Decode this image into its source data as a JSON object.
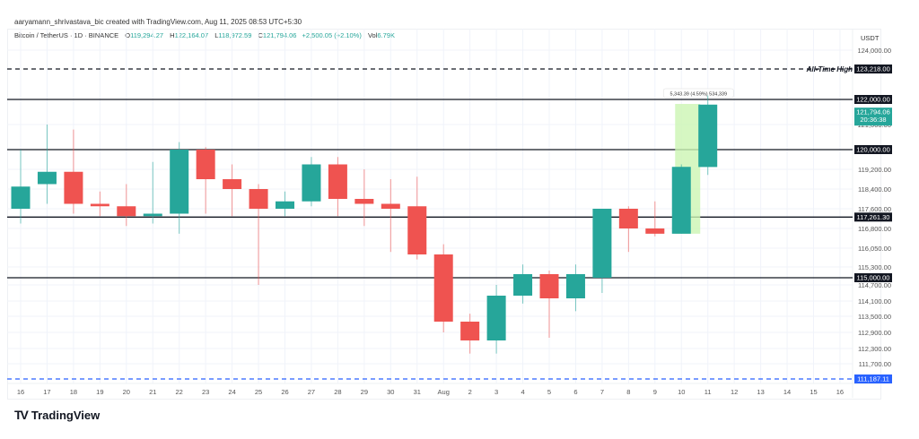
{
  "header": {
    "credit": "aaryamann_shrivastava_bic created with TradingView.com, Aug 11, 2025 08:53 UTC+5:30",
    "symbol": "Bitcoin / TetherUS · 1D · BINANCE",
    "open_label": "O",
    "open": "119,294.27",
    "high_label": "H",
    "high": "122,164.07",
    "low_label": "L",
    "low": "118,972.59",
    "close_label": "C",
    "close": "121,794.06",
    "change": "+2,500.05 (+2.10%)",
    "vol_label": "Vol",
    "vol": "6.79K"
  },
  "price_axis": {
    "currency": "USDT",
    "ticks": [
      "124,000.00",
      "121,000.00",
      "119,200.00",
      "118,400.00",
      "117,600.00",
      "116,800.00",
      "116,050.00",
      "115,300.00",
      "114,700.00",
      "114,100.00",
      "113,500.00",
      "112,900.00",
      "112,300.00",
      "111,700.00"
    ]
  },
  "levels": {
    "ath": {
      "label": "All-Time High",
      "value": "123,218.00"
    },
    "l122": {
      "value": "122,000.00"
    },
    "l120": {
      "value": "120,000.00"
    },
    "l117": {
      "value": "117,261.30"
    },
    "l115": {
      "value": "115,000.00"
    },
    "low": {
      "value": "111,187.11"
    },
    "current": {
      "value": "121,794.06",
      "countdown": "20:36:38"
    }
  },
  "measure": {
    "label": "5,343.39 (4.59%) 534,339"
  },
  "time_axis": [
    "16",
    "17",
    "18",
    "19",
    "20",
    "21",
    "22",
    "23",
    "24",
    "25",
    "26",
    "27",
    "28",
    "29",
    "30",
    "31",
    "Aug",
    "2",
    "3",
    "4",
    "5",
    "6",
    "7",
    "8",
    "9",
    "10",
    "11",
    "12",
    "13",
    "14",
    "15",
    "16"
  ],
  "branding": {
    "mark": "TV",
    "name": "TradingView"
  },
  "colors": {
    "up": "#26a69a",
    "down": "#ef5350",
    "level": "#131722",
    "low_level": "#2962ff",
    "highlight": "#ccf5b3"
  },
  "chart_data": {
    "type": "candlestick",
    "title": "Bitcoin / TetherUS · 1D · BINANCE",
    "xlabel": "",
    "ylabel": "USDT",
    "ylim": [
      111000,
      124500
    ],
    "categories": [
      "Jul 16",
      "Jul 17",
      "Jul 18",
      "Jul 19",
      "Jul 20",
      "Jul 21",
      "Jul 22",
      "Jul 23",
      "Jul 24",
      "Jul 25",
      "Jul 26",
      "Jul 27",
      "Jul 28",
      "Jul 29",
      "Jul 30",
      "Jul 31",
      "Aug 1",
      "Aug 2",
      "Aug 3",
      "Aug 4",
      "Aug 5",
      "Aug 6",
      "Aug 7",
      "Aug 8",
      "Aug 9",
      "Aug 10",
      "Aug 11"
    ],
    "candles": [
      {
        "date": "Jul 16",
        "open": 117600,
        "high": 120000,
        "low": 117000,
        "close": 118500
      },
      {
        "date": "Jul 17",
        "open": 118600,
        "high": 121000,
        "low": 117800,
        "close": 119100
      },
      {
        "date": "Jul 18",
        "open": 119100,
        "high": 120800,
        "low": 117400,
        "close": 117800
      },
      {
        "date": "Jul 19",
        "open": 117800,
        "high": 118300,
        "low": 117300,
        "close": 117700
      },
      {
        "date": "Jul 20",
        "open": 117700,
        "high": 118600,
        "low": 116900,
        "close": 117300
      },
      {
        "date": "Jul 21",
        "open": 117300,
        "high": 119500,
        "low": 117000,
        "close": 117400
      },
      {
        "date": "Jul 22",
        "open": 117400,
        "high": 120300,
        "low": 116600,
        "close": 120000
      },
      {
        "date": "Jul 23",
        "open": 120000,
        "high": 120100,
        "low": 117400,
        "close": 118800
      },
      {
        "date": "Jul 24",
        "open": 118800,
        "high": 119400,
        "low": 117300,
        "close": 118400
      },
      {
        "date": "Jul 25",
        "open": 118400,
        "high": 118600,
        "low": 114700,
        "close": 117600
      },
      {
        "date": "Jul 26",
        "open": 117600,
        "high": 118300,
        "low": 117300,
        "close": 117900
      },
      {
        "date": "Jul 27",
        "open": 117900,
        "high": 119700,
        "low": 117700,
        "close": 119400
      },
      {
        "date": "Jul 28",
        "open": 119400,
        "high": 119700,
        "low": 117300,
        "close": 118000
      },
      {
        "date": "Jul 29",
        "open": 118000,
        "high": 119200,
        "low": 116900,
        "close": 117800
      },
      {
        "date": "Jul 30",
        "open": 117800,
        "high": 118800,
        "low": 115900,
        "close": 117600
      },
      {
        "date": "Jul 31",
        "open": 117700,
        "high": 118900,
        "low": 115600,
        "close": 115800
      },
      {
        "date": "Aug 1",
        "open": 115800,
        "high": 116200,
        "low": 112900,
        "close": 113300
      },
      {
        "date": "Aug 2",
        "open": 113300,
        "high": 113600,
        "low": 112100,
        "close": 112600
      },
      {
        "date": "Aug 3",
        "open": 112600,
        "high": 114700,
        "low": 112100,
        "close": 114300
      },
      {
        "date": "Aug 4",
        "open": 114300,
        "high": 115400,
        "low": 114000,
        "close": 115100
      },
      {
        "date": "Aug 5",
        "open": 115100,
        "high": 115200,
        "low": 112700,
        "close": 114200
      },
      {
        "date": "Aug 6",
        "open": 114200,
        "high": 115400,
        "low": 113700,
        "close": 115100
      },
      {
        "date": "Aug 7",
        "open": 115000,
        "high": 117600,
        "low": 114400,
        "close": 117600
      },
      {
        "date": "Aug 8",
        "open": 117600,
        "high": 117700,
        "low": 115900,
        "close": 116800
      },
      {
        "date": "Aug 9",
        "open": 116800,
        "high": 117900,
        "low": 116500,
        "close": 116600
      },
      {
        "date": "Aug 10",
        "open": 116600,
        "high": 119400,
        "low": 116600,
        "close": 119300
      },
      {
        "date": "Aug 11",
        "open": 119294.27,
        "high": 122164.07,
        "low": 118972.59,
        "close": 121794.06
      }
    ],
    "annotations": [
      {
        "type": "hline",
        "value": 123218,
        "label": "All-Time High",
        "style": "dashed"
      },
      {
        "type": "hline",
        "value": 122000
      },
      {
        "type": "hline",
        "value": 120000
      },
      {
        "type": "hline",
        "value": 117261.3
      },
      {
        "type": "hline",
        "value": 115000
      },
      {
        "type": "hline",
        "value": 111187.11,
        "style": "dashed",
        "color": "#2962ff"
      },
      {
        "type": "range",
        "label": "5,343.39 (4.59%) 534,339",
        "from": 116600,
        "to": 122000
      }
    ],
    "grid": true,
    "legend_position": "top-left"
  }
}
